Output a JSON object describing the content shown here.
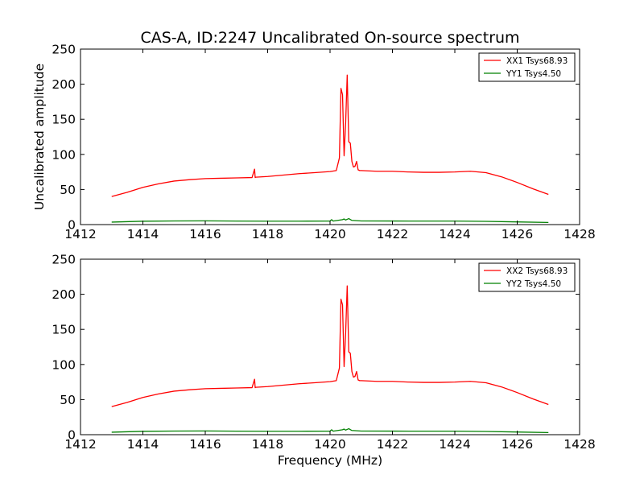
{
  "title": "CAS-A, ID:2247 Uncalibrated On-source spectrum",
  "colors": {
    "xx": "#ff0000",
    "yy": "#008000",
    "axis": "#000000",
    "background": "#ffffff"
  },
  "chart_data": [
    {
      "type": "line",
      "title": "CAS-A, ID:2247 Uncalibrated On-source spectrum",
      "xlabel": "",
      "ylabel": "Uncalibrated amplitude",
      "xlim": [
        1412,
        1428
      ],
      "ylim": [
        0,
        250
      ],
      "xticks": [
        "1412",
        "1414",
        "1416",
        "1418",
        "1420",
        "1422",
        "1424",
        "1426",
        "1428"
      ],
      "yticks": [
        "0",
        "50",
        "100",
        "150",
        "200",
        "250"
      ],
      "grid": false,
      "legend_position": "top-right",
      "series": [
        {
          "name": "XX1 Tsys68.93",
          "color": "#ff0000",
          "x": [
            1413.0,
            1413.5,
            1414.0,
            1414.5,
            1415.0,
            1415.5,
            1416.0,
            1416.5,
            1417.0,
            1417.5,
            1417.58,
            1417.6,
            1417.62,
            1418.0,
            1418.5,
            1419.0,
            1419.5,
            1420.0,
            1420.2,
            1420.3,
            1420.35,
            1420.4,
            1420.45,
            1420.5,
            1420.55,
            1420.6,
            1420.65,
            1420.7,
            1420.75,
            1420.8,
            1420.85,
            1420.9,
            1420.95,
            1421.0,
            1421.5,
            1422.0,
            1422.5,
            1423.0,
            1423.5,
            1424.0,
            1424.5,
            1425.0,
            1425.5,
            1426.0,
            1426.5,
            1427.0
          ],
          "y": [
            40,
            46,
            53,
            58,
            62,
            64,
            65.5,
            66,
            66.5,
            67,
            79,
            67,
            67.5,
            68.5,
            70.5,
            72.5,
            74,
            75.5,
            77,
            95,
            194,
            185,
            98,
            145,
            213,
            118,
            116,
            90,
            82,
            83,
            90,
            78,
            77,
            77,
            76,
            76,
            75,
            74.5,
            74.5,
            75,
            76,
            74,
            68,
            60,
            51,
            43
          ]
        },
        {
          "name": "YY1 Tsys4.50",
          "color": "#008000",
          "x": [
            1413.0,
            1414.0,
            1415.0,
            1416.0,
            1417.0,
            1418.0,
            1419.0,
            1420.0,
            1420.05,
            1420.1,
            1420.4,
            1420.45,
            1420.5,
            1420.55,
            1420.6,
            1420.7,
            1421.0,
            1422.0,
            1423.0,
            1424.0,
            1425.0,
            1426.0,
            1427.0
          ],
          "y": [
            3.5,
            4.8,
            5.2,
            5.3,
            5.0,
            4.9,
            4.9,
            5.0,
            7.0,
            5.0,
            7.0,
            8.0,
            6.5,
            7.5,
            8.5,
            6.0,
            5.2,
            5.1,
            5.0,
            5.0,
            4.6,
            3.8,
            3.0
          ]
        }
      ]
    },
    {
      "type": "line",
      "title": "",
      "xlabel": "Frequency (MHz)",
      "ylabel": "",
      "xlim": [
        1412,
        1428
      ],
      "ylim": [
        0,
        250
      ],
      "xticks": [
        "1412",
        "1414",
        "1416",
        "1418",
        "1420",
        "1422",
        "1424",
        "1426",
        "1428"
      ],
      "yticks": [
        "0",
        "50",
        "100",
        "150",
        "200",
        "250"
      ],
      "grid": false,
      "legend_position": "top-right",
      "series": [
        {
          "name": "XX2 Tsys68.93",
          "color": "#ff0000",
          "x": [
            1413.0,
            1413.5,
            1414.0,
            1414.5,
            1415.0,
            1415.5,
            1416.0,
            1416.5,
            1417.0,
            1417.5,
            1417.58,
            1417.6,
            1417.62,
            1418.0,
            1418.5,
            1419.0,
            1419.5,
            1420.0,
            1420.2,
            1420.3,
            1420.35,
            1420.4,
            1420.45,
            1420.5,
            1420.55,
            1420.6,
            1420.65,
            1420.7,
            1420.75,
            1420.8,
            1420.85,
            1420.9,
            1420.95,
            1421.0,
            1421.5,
            1422.0,
            1422.5,
            1423.0,
            1423.5,
            1424.0,
            1424.5,
            1425.0,
            1425.5,
            1426.0,
            1426.5,
            1427.0
          ],
          "y": [
            40,
            46,
            53,
            58,
            62,
            64,
            65.5,
            66,
            66.5,
            67,
            79,
            67,
            67.5,
            68.5,
            70.5,
            72.5,
            74,
            75.5,
            77,
            95,
            193,
            185,
            97,
            145,
            212,
            118,
            116,
            90,
            82,
            83,
            90,
            78,
            77,
            77,
            76,
            76,
            75,
            74.5,
            74.5,
            75,
            76,
            74,
            68,
            60,
            51,
            43
          ]
        },
        {
          "name": "YY2 Tsys4.50",
          "color": "#008000",
          "x": [
            1413.0,
            1414.0,
            1415.0,
            1416.0,
            1417.0,
            1418.0,
            1419.0,
            1420.0,
            1420.05,
            1420.1,
            1420.4,
            1420.45,
            1420.5,
            1420.55,
            1420.6,
            1420.7,
            1421.0,
            1422.0,
            1423.0,
            1424.0,
            1425.0,
            1426.0,
            1427.0
          ],
          "y": [
            3.5,
            4.8,
            5.2,
            5.3,
            5.0,
            4.9,
            4.9,
            5.0,
            7.0,
            5.0,
            7.0,
            8.0,
            6.5,
            7.5,
            8.5,
            6.0,
            5.2,
            5.1,
            5.0,
            5.0,
            4.6,
            3.8,
            3.0
          ]
        }
      ]
    }
  ]
}
